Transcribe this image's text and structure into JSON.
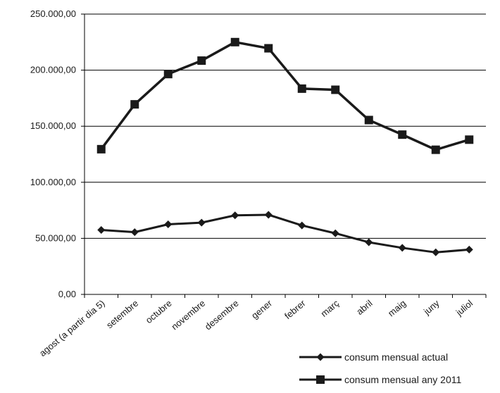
{
  "chart_data": {
    "type": "line",
    "categories": [
      "agost (a partir dia 5)",
      "setembre",
      "octubre",
      "novembre",
      "desembre",
      "gener",
      "febrer",
      "març",
      "abril",
      "maig",
      "juny",
      "juliol"
    ],
    "series": [
      {
        "name": "consum mensual actual",
        "marker": "diamond",
        "values": [
          57500,
          55500,
          62500,
          64000,
          70500,
          71000,
          61500,
          54500,
          46500,
          41500,
          37500,
          40000
        ]
      },
      {
        "name": "consum mensual any 2011",
        "marker": "square",
        "values": [
          129500,
          169500,
          196500,
          208500,
          225000,
          219500,
          183500,
          182500,
          155500,
          142500,
          129000,
          138000
        ]
      }
    ],
    "yticks": [
      "0,00",
      "50.000,00",
      "100.000,00",
      "150.000,00",
      "200.000,00",
      "250.000,00"
    ],
    "ylim": [
      0,
      250000
    ],
    "grid": "horizontal",
    "legend_position": "bottom-right",
    "colors": {
      "line": "#1a1a1a",
      "grid": "#000000"
    }
  }
}
